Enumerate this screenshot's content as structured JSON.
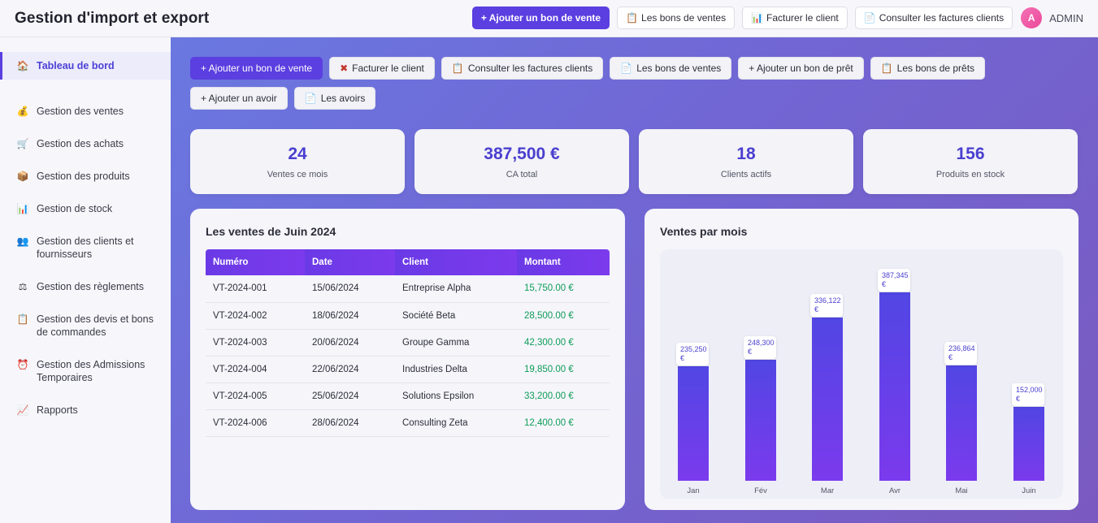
{
  "header": {
    "title": "Gestion d'import et export",
    "buttons": {
      "add_sale": "+ Ajouter un bon de vente",
      "sales_notes": "Les bons de ventes",
      "invoice_client": "Facturer le client",
      "view_invoices": "Consulter les factures clients"
    },
    "user": {
      "initial": "A",
      "name": "ADMIN"
    }
  },
  "sidebar": {
    "items": [
      {
        "label": "Tableau de bord",
        "icon": "home-icon"
      },
      {
        "label": "Gestion des ventes",
        "icon": "money-bag-icon"
      },
      {
        "label": "Gestion des achats",
        "icon": "cart-icon"
      },
      {
        "label": "Gestion des produits",
        "icon": "box-icon"
      },
      {
        "label": "Gestion de stock",
        "icon": "bar-chart-icon"
      },
      {
        "label": "Gestion des clients et fournisseurs",
        "icon": "people-icon"
      },
      {
        "label": "Gestion des règlements",
        "icon": "scale-icon"
      },
      {
        "label": "Gestion des devis et bons de commandes",
        "icon": "clipboard-icon"
      },
      {
        "label": "Gestion des Admissions Temporaires",
        "icon": "alarm-clock-icon"
      },
      {
        "label": "Rapports",
        "icon": "chart-up-icon"
      }
    ]
  },
  "actions": {
    "add_sale": "+ Ajouter un bon de vente",
    "invoice_client": "Facturer le client",
    "view_invoices": "Consulter les factures clients",
    "sales_notes": "Les bons de ventes",
    "add_loan": "+ Ajouter un bon de prêt",
    "loan_notes": "Les bons de prêts",
    "add_credit": "+ Ajouter un avoir",
    "credits": "Les avoirs"
  },
  "stats": [
    {
      "value": "24",
      "label": "Ventes ce mois"
    },
    {
      "value": "387,500 €",
      "label": "CA total"
    },
    {
      "value": "18",
      "label": "Clients actifs"
    },
    {
      "value": "156",
      "label": "Produits en stock"
    }
  ],
  "sales_table": {
    "title": "Les ventes de Juin 2024",
    "headers": [
      "Numéro",
      "Date",
      "Client",
      "Montant"
    ],
    "rows": [
      [
        "VT-2024-001",
        "15/06/2024",
        "Entreprise Alpha",
        "15,750.00 €"
      ],
      [
        "VT-2024-002",
        "18/06/2024",
        "Société Beta",
        "28,500.00 €"
      ],
      [
        "VT-2024-003",
        "20/06/2024",
        "Groupe Gamma",
        "42,300.00 €"
      ],
      [
        "VT-2024-004",
        "22/06/2024",
        "Industries Delta",
        "19,850.00 €"
      ],
      [
        "VT-2024-005",
        "25/06/2024",
        "Solutions Epsilon",
        "33,200.00 €"
      ],
      [
        "VT-2024-006",
        "28/06/2024",
        "Consulting Zeta",
        "12,400.00 €"
      ]
    ]
  },
  "chart_panel": {
    "title": "Ventes par mois"
  },
  "chart_data": {
    "type": "bar",
    "title": "Ventes par mois",
    "categories": [
      "Jan",
      "Fév",
      "Mar",
      "Avr",
      "Mai",
      "Juin"
    ],
    "values": [
      235250,
      248300,
      336122,
      387345,
      236864,
      152000
    ],
    "labels": [
      "235,250 €",
      "248,300 €",
      "336,122 €",
      "387,345 €",
      "236,864 €",
      "152,000 €"
    ],
    "ylim": [
      0,
      387345
    ],
    "colors": {
      "top": "#5146e4",
      "bottom": "#7b3aed"
    }
  }
}
